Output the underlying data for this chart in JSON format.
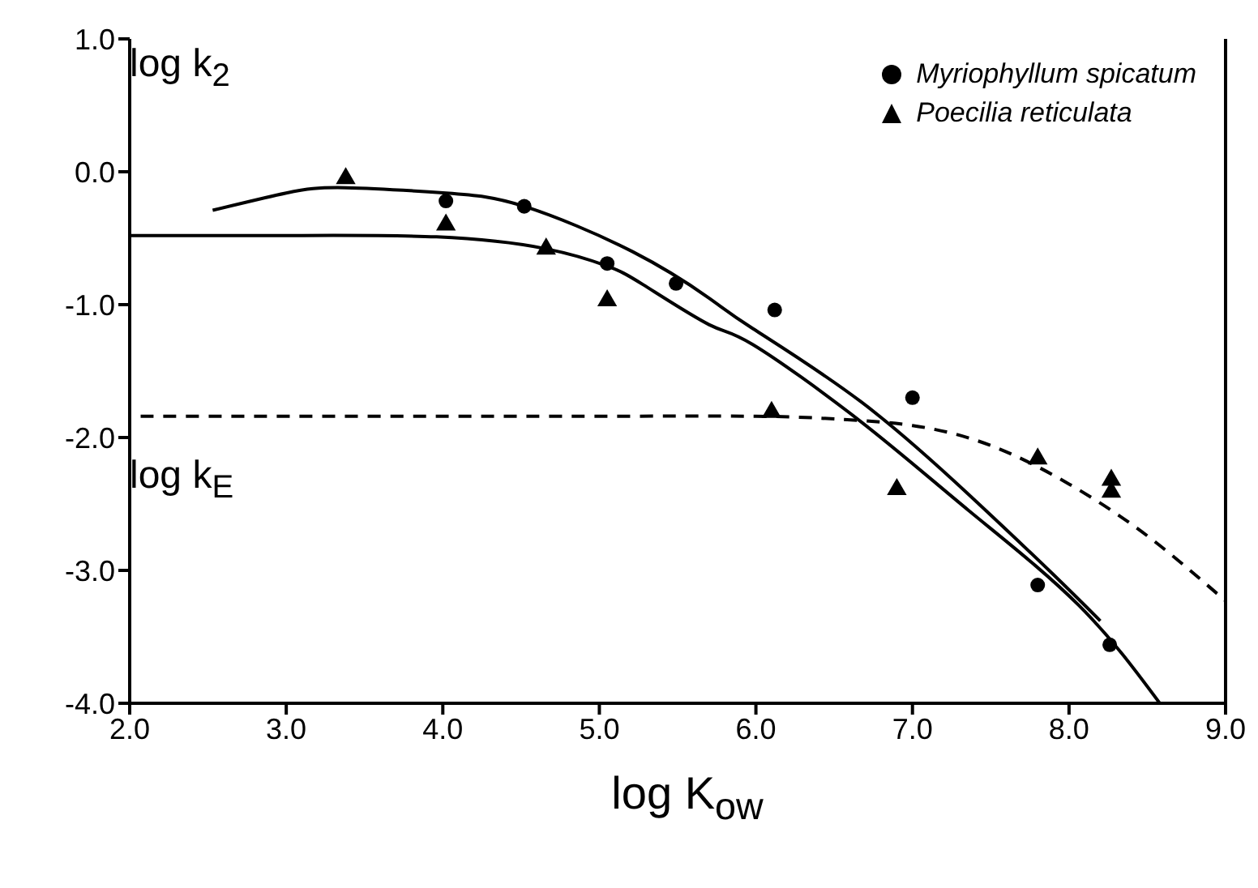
{
  "chart_data": {
    "type": "scatter",
    "xlabel": "log K$_{ow}$",
    "annotations": [
      "log k$_{2}$",
      "log k$_{E}$"
    ],
    "xlim": [
      2.0,
      9.0
    ],
    "xticks": [
      {
        "value": 2,
        "label": "2.0"
      },
      {
        "value": 3,
        "label": "3.0"
      },
      {
        "value": 4,
        "label": "4.0"
      },
      {
        "value": 5,
        "label": "5.0"
      },
      {
        "value": 6,
        "label": "6.0"
      },
      {
        "value": 7,
        "label": "7.0"
      },
      {
        "value": 8,
        "label": "8.0"
      },
      {
        "value": 9,
        "label": "9.0"
      }
    ],
    "ylim": [
      -4.0,
      1.0
    ],
    "yticks": [
      {
        "value": -4,
        "label": "-4.0"
      },
      {
        "value": -3,
        "label": "-3.0"
      },
      {
        "value": -2,
        "label": "-2.0"
      },
      {
        "value": -1,
        "label": "-1.0"
      },
      {
        "value": 0,
        "label": "0.0"
      },
      {
        "value": 1,
        "label": "1.0"
      }
    ],
    "grid": false,
    "legend": "top right",
    "series": [
      {
        "name": "Myriophyllum spicatum",
        "type": "scatter",
        "marker": "circle",
        "color": "#000000",
        "x": [
          4.02,
          4.52,
          5.05,
          5.49,
          6.12,
          7.0,
          7.8,
          8.26
        ],
        "values": [
          -0.22,
          -0.26,
          -0.69,
          -0.84,
          -1.04,
          -1.7,
          -3.11,
          -3.56
        ]
      },
      {
        "name": "Poecilia reticulata",
        "type": "scatter",
        "marker": "triangle",
        "color": "#000000",
        "x": [
          3.38,
          4.02,
          4.66,
          5.05,
          6.1,
          6.9,
          7.8,
          8.27,
          8.27
        ],
        "values": [
          -0.05,
          -0.4,
          -0.58,
          -0.97,
          -1.81,
          -2.39,
          -2.16,
          -2.32,
          -2.41
        ]
      },
      {
        "type": "line",
        "marker": "none",
        "line_style": "solid",
        "color": "#000000",
        "x": [
          2.53,
          3.0,
          3.38,
          4.02,
          4.52,
          5.21,
          5.7,
          5.98,
          6.67,
          7.36,
          7.89,
          8.2
        ],
        "values": [
          -0.29,
          -0.16,
          -0.12,
          -0.16,
          -0.26,
          -0.6,
          -0.95,
          -1.18,
          -1.73,
          -2.43,
          -3.02,
          -3.38
        ]
      },
      {
        "type": "line",
        "marker": "none",
        "line_style": "solid",
        "color": "#000000",
        "x": [
          2.0,
          3.0,
          3.96,
          4.66,
          5.05,
          5.28,
          5.7,
          5.98,
          6.67,
          7.36,
          8.06,
          8.58
        ],
        "values": [
          -0.48,
          -0.48,
          -0.49,
          -0.58,
          -0.71,
          -0.85,
          -1.15,
          -1.3,
          -1.88,
          -2.55,
          -3.26,
          -4.0
        ]
      },
      {
        "type": "line",
        "marker": "none",
        "line_style": "dashed",
        "color": "#000000",
        "x": [
          2.07,
          3.0,
          4.0,
          5.0,
          6.0,
          6.5,
          7.0,
          7.5,
          8.0,
          8.5,
          9.0
        ],
        "values": [
          -1.84,
          -1.84,
          -1.84,
          -1.84,
          -1.84,
          -1.86,
          -1.91,
          -2.06,
          -2.35,
          -2.74,
          -3.23
        ]
      }
    ]
  }
}
